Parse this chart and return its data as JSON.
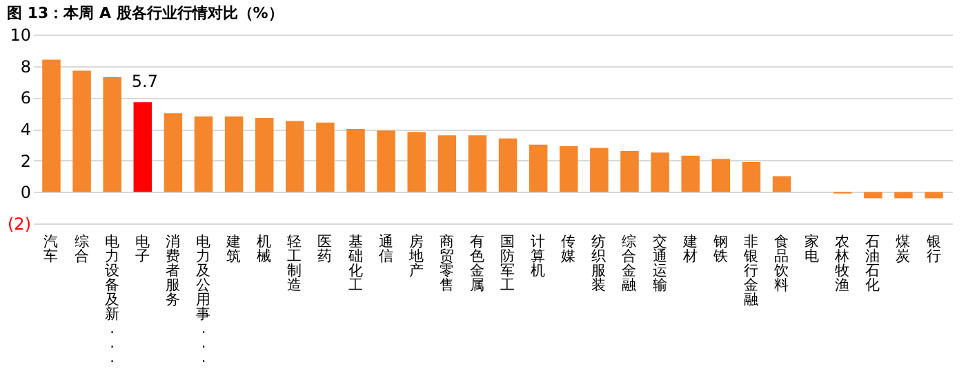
{
  "chart_data": {
    "type": "bar",
    "title": "图 13：本周 A 股各行业行情对比（%）",
    "categories": [
      "汽车",
      "综合",
      "电力设备及新...",
      "电子",
      "消费者服务",
      "电力及公用事...",
      "建筑",
      "机械",
      "轻工制造",
      "医药",
      "基础化工",
      "通信",
      "房地产",
      "商贸零售",
      "有色金属",
      "国防军工",
      "计算机",
      "传媒",
      "纺织服装",
      "综合金融",
      "交通运输",
      "建材",
      "钢铁",
      "非银行金融",
      "食品饮料",
      "家电",
      "农林牧渔",
      "石油石化",
      "煤炭",
      "银行"
    ],
    "values": [
      8.4,
      7.7,
      7.3,
      5.7,
      5.0,
      4.8,
      4.8,
      4.7,
      4.5,
      4.4,
      4.0,
      3.9,
      3.8,
      3.6,
      3.6,
      3.4,
      3.0,
      2.9,
      2.8,
      2.6,
      2.5,
      2.3,
      2.1,
      1.9,
      1.0,
      0,
      -0.1,
      -0.4,
      -0.4,
      -0.4
    ],
    "colors": [
      "#f5862b",
      "#f5862b",
      "#f5862b",
      "#ff0000",
      "#f5862b",
      "#f5862b",
      "#f5862b",
      "#f5862b",
      "#f5862b",
      "#f5862b",
      "#f5862b",
      "#f5862b",
      "#f5862b",
      "#f5862b",
      "#f5862b",
      "#f5862b",
      "#f5862b",
      "#f5862b",
      "#f5862b",
      "#f5862b",
      "#f5862b",
      "#f5862b",
      "#f5862b",
      "#f5862b",
      "#f5862b",
      "#f5862b",
      "#f5862b",
      "#f5862b",
      "#f5862b",
      "#f5862b"
    ],
    "value_labels": [
      null,
      null,
      null,
      "5.7",
      null,
      null,
      null,
      null,
      null,
      null,
      null,
      null,
      null,
      null,
      null,
      null,
      null,
      null,
      null,
      null,
      null,
      null,
      null,
      null,
      null,
      null,
      null,
      null,
      null,
      null
    ],
    "ylim": [
      -2,
      10
    ],
    "yticks": [
      {
        "value": -2,
        "label": "(2)"
      },
      0,
      2,
      4,
      6,
      8,
      10
    ],
    "grid": "y"
  }
}
